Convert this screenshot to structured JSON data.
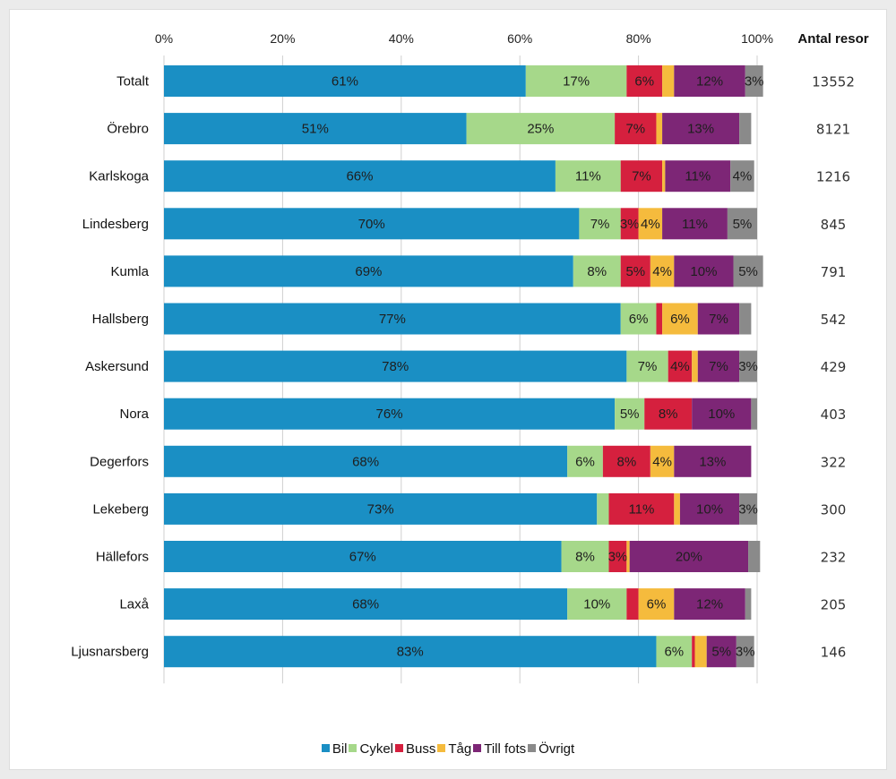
{
  "chart_data": {
    "type": "bar",
    "orientation": "horizontal",
    "stacked": true,
    "xlim": [
      0,
      100
    ],
    "x_ticks": [
      "0%",
      "20%",
      "40%",
      "60%",
      "80%",
      "100%"
    ],
    "grid": true,
    "legend_position": "bottom",
    "count_header": "Antal resor",
    "categories": [
      "Totalt",
      "Örebro",
      "Karlskoga",
      "Lindesberg",
      "Kumla",
      "Hallsberg",
      "Askersund",
      "Nora",
      "Degerfors",
      "Lekeberg",
      "Hällefors",
      "Laxå",
      "Ljusnarsberg"
    ],
    "counts": [
      "13552",
      "8121",
      "1216",
      "845",
      "791",
      "542",
      "429",
      "403",
      "322",
      "300",
      "232",
      "205",
      "146"
    ],
    "series": [
      {
        "name": "Bil",
        "color": "#1a8fc4",
        "values": [
          61,
          51,
          66,
          70,
          69,
          77,
          78,
          76,
          68,
          73,
          67,
          68,
          83
        ],
        "labels": [
          "61%",
          "51%",
          "66%",
          "70%",
          "69%",
          "77%",
          "78%",
          "76%",
          "68%",
          "73%",
          "67%",
          "68%",
          "83%"
        ]
      },
      {
        "name": "Cykel",
        "color": "#a6d88a",
        "values": [
          17,
          25,
          11,
          7,
          8,
          6,
          7,
          5,
          6,
          2,
          8,
          10,
          6
        ],
        "labels": [
          "17%",
          "25%",
          "11%",
          "7%",
          "8%",
          "6%",
          "7%",
          "5%",
          "6%",
          "",
          "8%",
          "10%",
          "6%"
        ]
      },
      {
        "name": "Buss",
        "color": "#d5203e",
        "values": [
          6,
          7,
          7,
          3,
          5,
          1,
          4,
          8,
          8,
          11,
          3,
          2,
          0.5
        ],
        "labels": [
          "6%",
          "7%",
          "7%",
          "3%",
          "5%",
          "",
          "4%",
          "8%",
          "8%",
          "11%",
          "3%",
          "",
          ""
        ]
      },
      {
        "name": "Tåg",
        "color": "#f5bb3d",
        "values": [
          2,
          1,
          0.5,
          4,
          4,
          6,
          1,
          0,
          4,
          1,
          0.5,
          6,
          2
        ],
        "labels": [
          "",
          "",
          "",
          "4%",
          "4%",
          "6%",
          "",
          "",
          "4%",
          "",
          "",
          "6%",
          ""
        ]
      },
      {
        "name": "Till fots",
        "color": "#7d2676",
        "values": [
          12,
          13,
          11,
          11,
          10,
          7,
          7,
          10,
          13,
          10,
          20,
          12,
          5
        ],
        "labels": [
          "12%",
          "13%",
          "11%",
          "11%",
          "10%",
          "7%",
          "7%",
          "10%",
          "13%",
          "10%",
          "20%",
          "12%",
          "5%"
        ]
      },
      {
        "name": "Övrigt",
        "color": "#8a8a8a",
        "values": [
          3,
          2,
          4,
          5,
          5,
          2,
          3,
          1,
          0,
          3,
          2,
          1,
          3
        ],
        "labels": [
          "3%",
          "",
          "4%",
          "5%",
          "5%",
          "",
          "3%",
          "",
          "",
          "3%",
          "",
          "",
          "3%"
        ]
      }
    ]
  }
}
